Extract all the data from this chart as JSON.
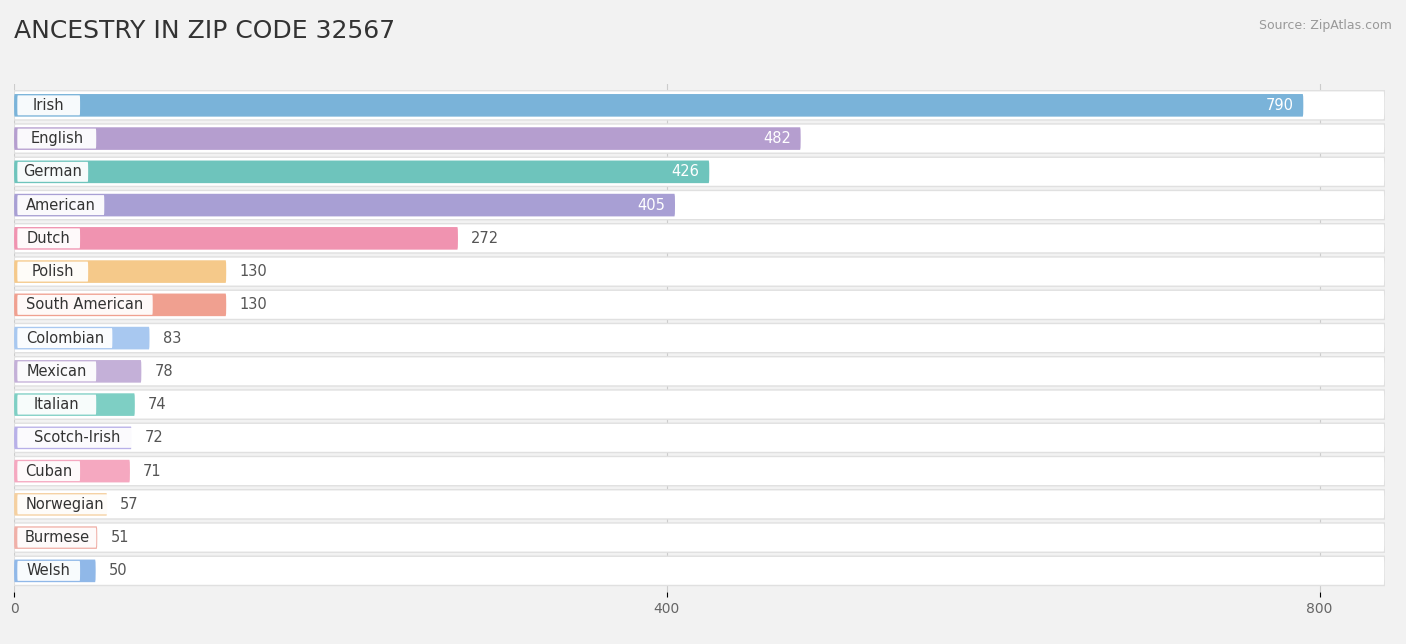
{
  "title": "ANCESTRY IN ZIP CODE 32567",
  "source": "Source: ZipAtlas.com",
  "categories": [
    "Irish",
    "English",
    "German",
    "American",
    "Dutch",
    "Polish",
    "South American",
    "Colombian",
    "Mexican",
    "Italian",
    "Scotch-Irish",
    "Cuban",
    "Norwegian",
    "Burmese",
    "Welsh"
  ],
  "values": [
    790,
    482,
    426,
    405,
    272,
    130,
    130,
    83,
    78,
    74,
    72,
    71,
    57,
    51,
    50
  ],
  "bar_colors": [
    "#7ab3d9",
    "#b59ecf",
    "#6ec4bc",
    "#a89fd4",
    "#f093b0",
    "#f5c98a",
    "#f0a090",
    "#a8c8f0",
    "#c4b0d8",
    "#7ecfc4",
    "#b8b0e8",
    "#f5a8c0",
    "#f5d0a0",
    "#f0b0a8",
    "#90b8e8"
  ],
  "background_color": "#f2f2f2",
  "row_bg_color": "#ffffff",
  "row_border_color": "#dddddd",
  "xlim_max": 840,
  "xticks": [
    0,
    400,
    800
  ],
  "title_fontsize": 18,
  "label_fontsize": 10.5,
  "value_fontsize": 10.5,
  "bar_height": 0.68,
  "grid_color": "#cccccc",
  "value_inside_threshold": 500
}
